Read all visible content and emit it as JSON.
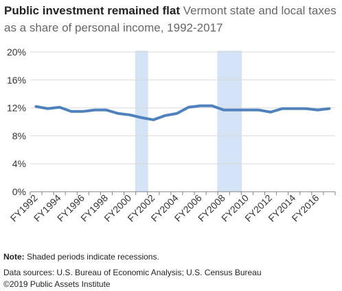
{
  "header": {
    "title": "Public investment remained flat",
    "subtitle": "Vermont state and local taxes as a share of personal income, 1992-2017"
  },
  "notes": {
    "note_label": "Note:",
    "note_text": " Shaded periods indicate recessions.",
    "sources": "Data sources: U.S. Bureau of Economic Analysis; U.S. Census Bureau",
    "copyright": "©2019 Public Assets Institute"
  },
  "colors": {
    "line": "#4f81bd",
    "recession": "#c6d9f1",
    "grid": "#d9d9d9",
    "axis": "#7f7f7f",
    "text": "#333333"
  },
  "chart_data": {
    "type": "line",
    "title": "Public investment remained flat",
    "subtitle": "Vermont state and local taxes as a share of personal income, 1992-2017",
    "xlabel": "",
    "ylabel": "",
    "ylim": [
      0,
      20
    ],
    "y_ticks": [
      "0%",
      "4%",
      "8%",
      "12%",
      "16%",
      "20%"
    ],
    "y_tick_values": [
      0,
      4,
      8,
      12,
      16,
      20
    ],
    "grid": true,
    "legend": "none",
    "categories": [
      "FY1992",
      "FY1993",
      "FY1994",
      "FY1995",
      "FY1996",
      "FY1997",
      "FY1998",
      "FY1999",
      "FY2000",
      "FY2001",
      "FY2002",
      "FY2003",
      "FY2004",
      "FY2005",
      "FY2006",
      "FY2007",
      "FY2008",
      "FY2009",
      "FY2010",
      "FY2011",
      "FY2012",
      "FY2013",
      "FY2014",
      "FY2015",
      "FY2016",
      "FY2017"
    ],
    "x_tick_labels": [
      "FY1992",
      "FY1994",
      "FY1996",
      "FY1998",
      "FY2000",
      "FY2002",
      "FY2004",
      "FY2006",
      "FY2008",
      "FY2010",
      "FY2012",
      "FY2014",
      "FY2016"
    ],
    "series": [
      {
        "values": [
          12.2,
          11.9,
          12.1,
          11.5,
          11.5,
          11.7,
          11.7,
          11.2,
          11.0,
          10.6,
          10.3,
          10.9,
          11.2,
          12.1,
          12.3,
          12.3,
          11.7,
          11.7,
          11.7,
          11.7,
          11.4,
          11.9,
          11.9,
          11.9,
          11.7,
          11.9
        ]
      }
    ],
    "recessions": [
      {
        "start": "FY2001",
        "end": "FY2001"
      },
      {
        "start": "FY2008",
        "end": "FY2009"
      }
    ]
  }
}
